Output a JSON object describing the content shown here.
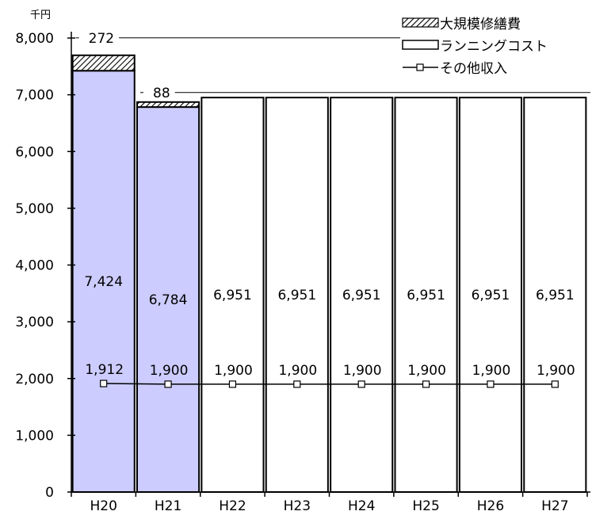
{
  "chart_data": {
    "type": "bar",
    "stacked": true,
    "y_unit": "千円",
    "ylim": [
      0,
      8000
    ],
    "y_ticks": [
      "0",
      "1,000",
      "2,000",
      "3,000",
      "4,000",
      "5,000",
      "6,000",
      "7,000",
      "8,000"
    ],
    "categories": [
      "H20",
      "H21",
      "H22",
      "H23",
      "H24",
      "H25",
      "H26",
      "H27"
    ],
    "series": [
      {
        "name": "ランニングコスト",
        "kind": "bar",
        "values": [
          7424,
          6784,
          6951,
          6951,
          6951,
          6951,
          6951,
          6951
        ],
        "labels": [
          "7,424",
          "6,784",
          "6,951",
          "6,951",
          "6,951",
          "6,951",
          "6,951",
          "6,951"
        ],
        "colors": [
          "#ccccff",
          "#ccccff",
          "#ffffff",
          "#ffffff",
          "#ffffff",
          "#ffffff",
          "#ffffff",
          "#ffffff"
        ]
      },
      {
        "name": "大規模修繕費",
        "kind": "bar",
        "values": [
          272,
          88,
          0,
          0,
          0,
          0,
          0,
          0
        ],
        "labels": [
          "272",
          "88",
          "",
          "",
          "",
          "",
          "",
          ""
        ],
        "pattern": "hatch"
      },
      {
        "name": "その他収入",
        "kind": "line",
        "values": [
          1912,
          1900,
          1900,
          1900,
          1900,
          1900,
          1900,
          1900
        ],
        "labels": [
          "1,912",
          "1,900",
          "1,900",
          "1,900",
          "1,900",
          "1,900",
          "1,900",
          "1,900"
        ]
      }
    ],
    "legend": {
      "position": "top-right",
      "items": [
        "大規模修繕費",
        "ランニングコスト",
        "その他収入"
      ]
    },
    "grid": false
  }
}
